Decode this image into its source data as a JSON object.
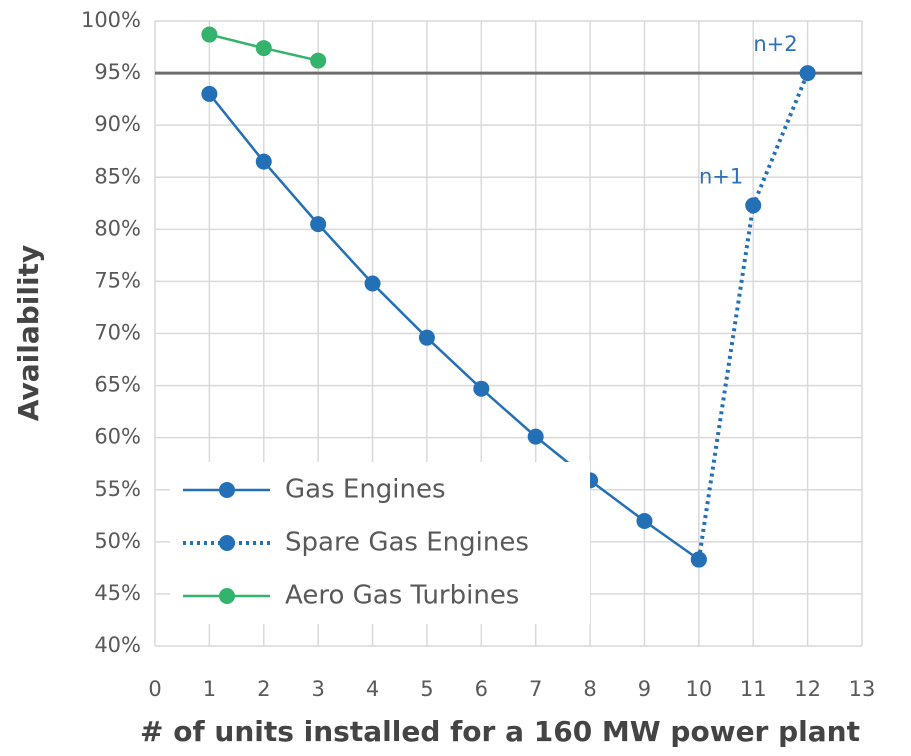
{
  "chart_data": {
    "type": "line",
    "x_label": "# of units installed for a 160 MW power plant",
    "y_label": "Availability",
    "series": [
      {
        "name": "Gas Engines",
        "color": "#2470b6",
        "dash": false,
        "x": [
          1,
          2,
          3,
          4,
          5,
          6,
          7,
          8,
          9,
          10
        ],
        "values": [
          93.0,
          86.5,
          80.5,
          74.8,
          69.6,
          64.7,
          60.1,
          55.9,
          52.0,
          48.3
        ]
      },
      {
        "name": "Spare Gas Engines",
        "color": "#2470b6",
        "dash": true,
        "x": [
          10,
          11,
          12
        ],
        "values": [
          48.3,
          82.3,
          95.0
        ]
      },
      {
        "name": "Aero Gas Turbines",
        "color": "#33b36b",
        "dash": false,
        "x": [
          1,
          2,
          3
        ],
        "values": [
          98.7,
          97.4,
          96.2
        ]
      }
    ],
    "hline": 95,
    "hline_color": "#6e6e6e",
    "annotations": [
      {
        "text": "n+1",
        "x": 11,
        "y": 82.3
      },
      {
        "text": "n+2",
        "x": 12,
        "y": 95.0
      }
    ],
    "xlim": [
      0,
      13
    ],
    "xticks": [
      0,
      1,
      2,
      3,
      4,
      5,
      6,
      7,
      8,
      9,
      10,
      11,
      12,
      13
    ],
    "ylim": [
      40,
      100
    ],
    "yticks": [
      {
        "value": 40,
        "label": "40%"
      },
      {
        "value": 45,
        "label": "45%"
      },
      {
        "value": 50,
        "label": "50%"
      },
      {
        "value": 55,
        "label": "55%"
      },
      {
        "value": 60,
        "label": "60%"
      },
      {
        "value": 65,
        "label": "65%"
      },
      {
        "value": 70,
        "label": "70%"
      },
      {
        "value": 75,
        "label": "75%"
      },
      {
        "value": 80,
        "label": "80%"
      },
      {
        "value": 85,
        "label": "85%"
      },
      {
        "value": 90,
        "label": "90%"
      },
      {
        "value": 95,
        "label": "95%"
      },
      {
        "value": 100,
        "label": "100%"
      }
    ],
    "grid": true,
    "legend": "lower left"
  }
}
